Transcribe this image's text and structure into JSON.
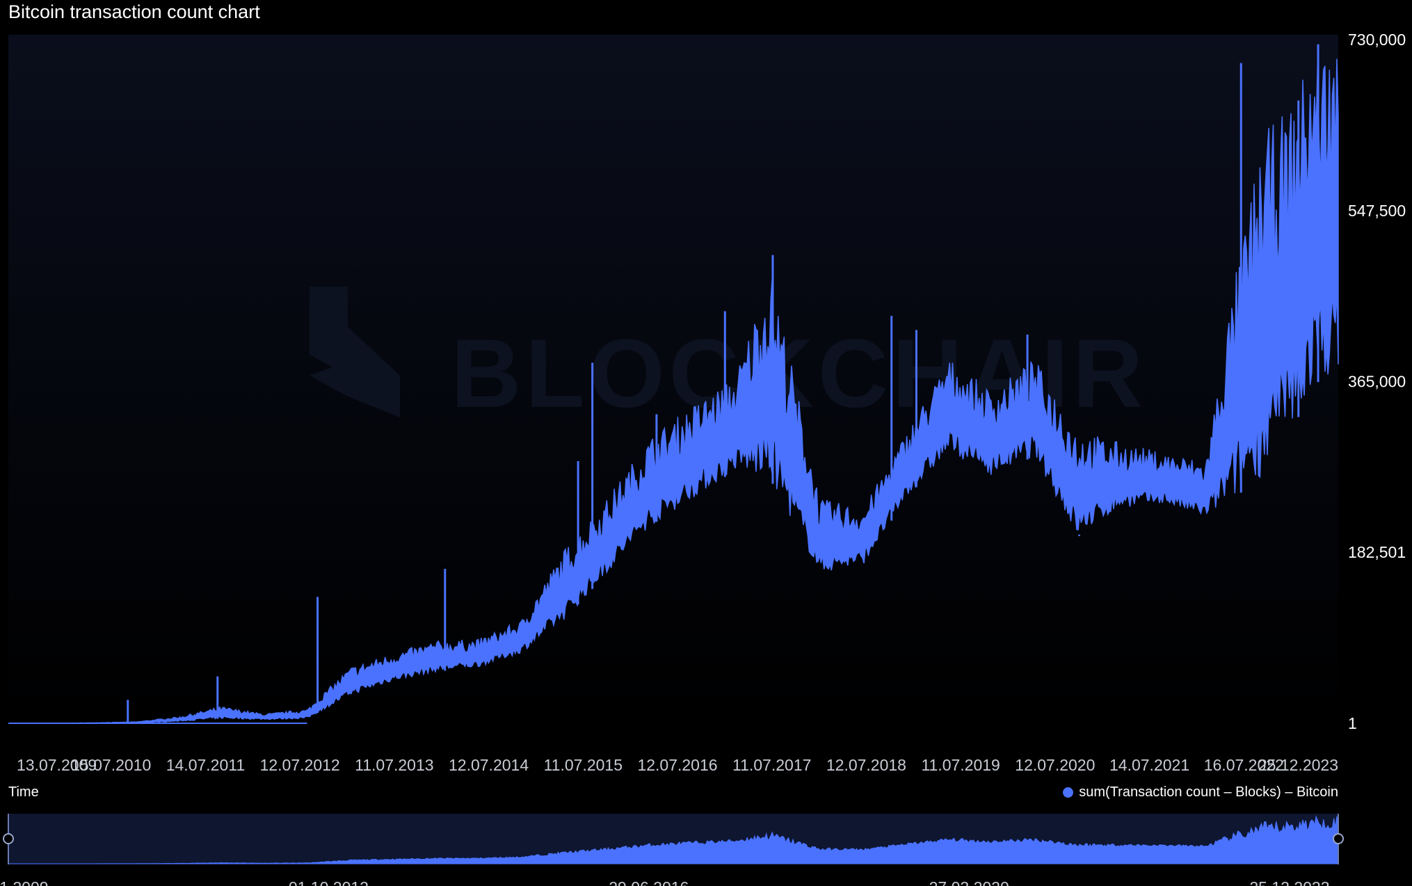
{
  "title": "Bitcoin transaction count chart",
  "watermark_text": "BLOCKCHAIR",
  "colors": {
    "series": "#4a72ff",
    "background": "#000000",
    "plot_top": "#0a0e1c",
    "navigator_bg": "#0e1630"
  },
  "chart_data": {
    "type": "area",
    "title": "Bitcoin transaction count chart",
    "xlabel": "Time",
    "ylabel": "",
    "x_ticks": [
      "13.07.2009",
      "15.07.2010",
      "14.07.2011",
      "12.07.2012",
      "11.07.2013",
      "12.07.2014",
      "11.07.2015",
      "12.07.2016",
      "11.07.2017",
      "12.07.2018",
      "11.07.2019",
      "12.07.2020",
      "14.07.2021",
      "16.07.2022",
      "25.12.2023"
    ],
    "y_ticks": [
      {
        "label": "730,000",
        "value": 730000
      },
      {
        "label": "547,500",
        "value": 547500
      },
      {
        "label": "365,000",
        "value": 365000
      },
      {
        "label": "182,501",
        "value": 182501
      },
      {
        "label": "1",
        "value": 1
      }
    ],
    "ylim": [
      1,
      730000
    ],
    "xlim": [
      "03.01.2009",
      "20.07.2024"
    ],
    "legend": {
      "position": "bottom-right",
      "entries": [
        "sum(Transaction count – Blocks) – Bitcoin"
      ]
    },
    "series": [
      {
        "name": "sum(Transaction count – Blocks) – Bitcoin",
        "x": [
          "03.01.2009",
          "01.07.2009",
          "01.01.2010",
          "01.07.2010",
          "01.01.2011",
          "01.07.2011",
          "01.01.2012",
          "01.07.2012",
          "01.01.2013",
          "01.07.2013",
          "01.01.2014",
          "01.07.2014",
          "01.01.2015",
          "01.07.2015",
          "01.01.2016",
          "01.07.2016",
          "01.01.2017",
          "01.07.2017",
          "01.12.2017",
          "01.07.2018",
          "01.01.2019",
          "01.07.2019",
          "01.01.2020",
          "01.07.2020",
          "01.01.2021",
          "01.07.2021",
          "01.01.2022",
          "01.07.2022",
          "01.01.2023",
          "01.05.2023",
          "01.09.2023",
          "01.01.2024",
          "01.04.2024",
          "20.07.2024"
        ],
        "low": [
          1,
          1,
          100,
          300,
          2000,
          5000,
          4000,
          5000,
          30000,
          45000,
          55000,
          60000,
          75000,
          110000,
          160000,
          210000,
          240000,
          270000,
          260000,
          160000,
          170000,
          240000,
          290000,
          265000,
          285000,
          200000,
          230000,
          235000,
          220000,
          240000,
          265000,
          310000,
          360000,
          380000
        ],
        "high": [
          1,
          1,
          500,
          1500,
          7000,
          18000,
          10000,
          15000,
          60000,
          75000,
          88000,
          90000,
          110000,
          185000,
          240000,
          305000,
          340000,
          370000,
          490000,
          240000,
          230000,
          310000,
          390000,
          355000,
          390000,
          315000,
          300000,
          290000,
          280000,
          470000,
          630000,
          660000,
          720000,
          730000
        ],
        "spike_x": [
          "28.05.2010",
          "15.06.2011",
          "15.08.2012",
          "10.02.2014",
          "01.09.2015",
          "01.11.2015",
          "01.08.2016",
          "20.05.2017",
          "10.12.2017",
          "01.05.2019",
          "15.08.2019",
          "01.12.2020",
          "10.07.2021",
          "01.06.2023",
          "01.02.2024",
          "25.04.2024"
        ],
        "spike_value": [
          25000,
          50000,
          135000,
          165000,
          280000,
          385000,
          330000,
          440000,
          500000,
          435000,
          420000,
          415000,
          200000,
          705000,
          665000,
          725000
        ]
      }
    ]
  },
  "navigator": {
    "ticks": [
      "03.01.2009",
      "01.10.2012",
      "29.06.2016",
      "27.03.2020",
      "25.12.2023"
    ]
  }
}
